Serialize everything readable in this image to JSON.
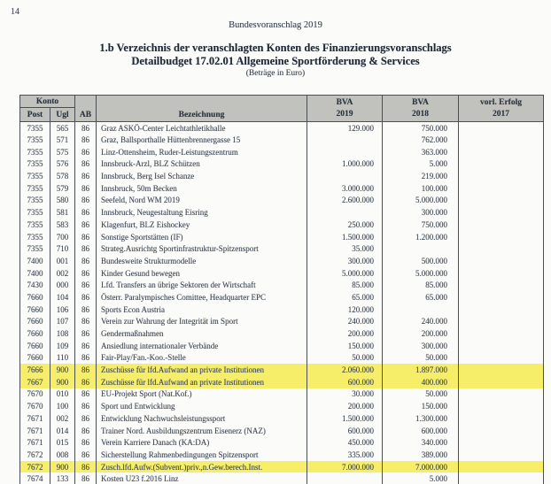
{
  "page": {
    "page_number": "14",
    "running_header": "Bundesvoranschlag 2019",
    "title_line1": "1.b Verzeichnis der veranschlagten Konten des Finanzierungsvoranschlags",
    "title_line2": "Detailbudget 17.02.01 Allgemeine Sportförderung & Services",
    "subtitle": "(Beträge in Euro)"
  },
  "colors": {
    "highlight_yellow": "#f6ee68",
    "header_gray": "#c1c1bd",
    "text": "#3d4652"
  },
  "table": {
    "header": {
      "konto": "Konto",
      "post": "Post",
      "ugl": "Ugl",
      "ab": "AB",
      "bezeichnung": "Bezeichnung",
      "col2019_line1": "BVA",
      "col2019_line2": "2019",
      "col2018_line1": "BVA",
      "col2018_line2": "2018",
      "erfolg_line1": "vorl. Erfolg",
      "erfolg_line2": "2017"
    },
    "rows": [
      {
        "post": "7355",
        "ugl": "565",
        "ab": "86",
        "bezeichnung": "Graz ASKÖ-Center Leichtathletikhalle",
        "bva2019": "129.000",
        "bva2018": "750.000",
        "erfolg2017": "",
        "highlight": false
      },
      {
        "post": "7355",
        "ugl": "571",
        "ab": "86",
        "bezeichnung": "Graz, Ballsporthalle Hüttenbrennergasse 15",
        "bva2019": "",
        "bva2018": "762.000",
        "erfolg2017": "",
        "highlight": false
      },
      {
        "post": "7355",
        "ugl": "575",
        "ab": "86",
        "bezeichnung": "Linz-Ottensheim, Ruder-Leistungszentrum",
        "bva2019": "",
        "bva2018": "363.000",
        "erfolg2017": "",
        "highlight": false
      },
      {
        "post": "7355",
        "ugl": "576",
        "ab": "86",
        "bezeichnung": "Innsbruck-Arzl, BLZ Schützen",
        "bva2019": "1.000.000",
        "bva2018": "5.000",
        "erfolg2017": "",
        "highlight": false
      },
      {
        "post": "7355",
        "ugl": "578",
        "ab": "86",
        "bezeichnung": "Innsbruck, Berg Isel Schanze",
        "bva2019": "",
        "bva2018": "219.000",
        "erfolg2017": "",
        "highlight": false
      },
      {
        "post": "7355",
        "ugl": "579",
        "ab": "86",
        "bezeichnung": "Innsbruck, 50m Becken",
        "bva2019": "3.000.000",
        "bva2018": "100.000",
        "erfolg2017": "",
        "highlight": false
      },
      {
        "post": "7355",
        "ugl": "580",
        "ab": "86",
        "bezeichnung": "Seefeld, Nord WM 2019",
        "bva2019": "2.600.000",
        "bva2018": "5.000.000",
        "erfolg2017": "",
        "highlight": false
      },
      {
        "post": "7355",
        "ugl": "581",
        "ab": "86",
        "bezeichnung": "Innsbruck, Neugestaltung Eisring",
        "bva2019": "",
        "bva2018": "300.000",
        "erfolg2017": "",
        "highlight": false
      },
      {
        "post": "7355",
        "ugl": "583",
        "ab": "86",
        "bezeichnung": "Klagenfurt, BLZ Eishockey",
        "bva2019": "250.000",
        "bva2018": "750.000",
        "erfolg2017": "",
        "highlight": false
      },
      {
        "post": "7355",
        "ugl": "700",
        "ab": "86",
        "bezeichnung": "Sonstige Sportstätten (IF)",
        "bva2019": "1.500.000",
        "bva2018": "1.200.000",
        "erfolg2017": "",
        "highlight": false
      },
      {
        "post": "7355",
        "ugl": "710",
        "ab": "86",
        "bezeichnung": "Strateg.Ausrichtg Sportinfrastruktur-Spitzensport",
        "bva2019": "35.000",
        "bva2018": "",
        "erfolg2017": "",
        "highlight": false
      },
      {
        "post": "7400",
        "ugl": "001",
        "ab": "86",
        "bezeichnung": "Bundesweite Strukturmodelle",
        "bva2019": "300.000",
        "bva2018": "500.000",
        "erfolg2017": "",
        "highlight": false
      },
      {
        "post": "7400",
        "ugl": "002",
        "ab": "86",
        "bezeichnung": "Kinder Gesund bewegen",
        "bva2019": "5.000.000",
        "bva2018": "5.000.000",
        "erfolg2017": "",
        "highlight": false
      },
      {
        "post": "7430",
        "ugl": "000",
        "ab": "86",
        "bezeichnung": "Lfd. Transfers an übrige Sektoren der Wirtschaft",
        "bva2019": "85.000",
        "bva2018": "85.000",
        "erfolg2017": "",
        "highlight": false
      },
      {
        "post": "7660",
        "ugl": "104",
        "ab": "86",
        "bezeichnung": "Österr. Paralympisches Comittee, Headquarter EPC",
        "bva2019": "65.000",
        "bva2018": "65.000",
        "erfolg2017": "",
        "highlight": false
      },
      {
        "post": "7660",
        "ugl": "106",
        "ab": "86",
        "bezeichnung": "Sports Econ Austria",
        "bva2019": "120.000",
        "bva2018": "",
        "erfolg2017": "",
        "highlight": false
      },
      {
        "post": "7660",
        "ugl": "107",
        "ab": "86",
        "bezeichnung": "Verein zur Wahrung der Integrität im Sport",
        "bva2019": "240.000",
        "bva2018": "240.000",
        "erfolg2017": "",
        "highlight": false
      },
      {
        "post": "7660",
        "ugl": "108",
        "ab": "86",
        "bezeichnung": "Gendermaßnahmen",
        "bva2019": "200.000",
        "bva2018": "200.000",
        "erfolg2017": "",
        "highlight": false
      },
      {
        "post": "7660",
        "ugl": "109",
        "ab": "86",
        "bezeichnung": "Ansiedlung internationaler Verbände",
        "bva2019": "150.000",
        "bva2018": "300.000",
        "erfolg2017": "",
        "highlight": false
      },
      {
        "post": "7660",
        "ugl": "110",
        "ab": "86",
        "bezeichnung": "Fair-Play/Fan.-Koo.-Stelle",
        "bva2019": "50.000",
        "bva2018": "50.000",
        "erfolg2017": "",
        "highlight": false
      },
      {
        "post": "7666",
        "ugl": "900",
        "ab": "86",
        "bezeichnung": "Zuschüsse für lfd.Aufwand an private Institutionen",
        "bva2019": "2.060.000",
        "bva2018": "1.897.000",
        "erfolg2017": "",
        "highlight": true
      },
      {
        "post": "7667",
        "ugl": "900",
        "ab": "86",
        "bezeichnung": "Zuschüsse für lfd.Aufwand an private Institutionen",
        "bva2019": "600.000",
        "bva2018": "400.000",
        "erfolg2017": "",
        "highlight": true
      },
      {
        "post": "7670",
        "ugl": "010",
        "ab": "86",
        "bezeichnung": "EU-Projekt Sport (Nat.Kof.)",
        "bva2019": "30.000",
        "bva2018": "50.000",
        "erfolg2017": "",
        "highlight": false
      },
      {
        "post": "7670",
        "ugl": "100",
        "ab": "86",
        "bezeichnung": "Sport und Entwicklung",
        "bva2019": "200.000",
        "bva2018": "150.000",
        "erfolg2017": "",
        "highlight": false
      },
      {
        "post": "7671",
        "ugl": "002",
        "ab": "86",
        "bezeichnung": "Entwicklung Nachwuchsleistungssport",
        "bva2019": "1.500.000",
        "bva2018": "1.300.000",
        "erfolg2017": "",
        "highlight": false
      },
      {
        "post": "7671",
        "ugl": "014",
        "ab": "86",
        "bezeichnung": "Trainer Nord. Ausbildungszentrum Eisenerz (NAZ)",
        "bva2019": "600.000",
        "bva2018": "600.000",
        "erfolg2017": "",
        "highlight": false
      },
      {
        "post": "7671",
        "ugl": "015",
        "ab": "86",
        "bezeichnung": "Verein Karriere Danach (KA:DA)",
        "bva2019": "450.000",
        "bva2018": "340.000",
        "erfolg2017": "",
        "highlight": false
      },
      {
        "post": "7672",
        "ugl": "008",
        "ab": "86",
        "bezeichnung": "Sicherstellung Rahmenbedingungen Spitzensport",
        "bva2019": "335.000",
        "bva2018": "389.000",
        "erfolg2017": "",
        "highlight": false
      },
      {
        "post": "7672",
        "ugl": "900",
        "ab": "86",
        "bezeichnung": "Zusch.lfd.Aufw.(Subvent.)priv.,n.Gew.berech.Inst.",
        "bva2019": "7.000.000",
        "bva2018": "7.000.000",
        "erfolg2017": "",
        "highlight": true
      },
      {
        "post": "7674",
        "ugl": "133",
        "ab": "86",
        "bezeichnung": "Kosten U23 f.2016 Linz",
        "bva2019": "",
        "bva2018": "5.000",
        "erfolg2017": "",
        "highlight": false
      }
    ]
  }
}
